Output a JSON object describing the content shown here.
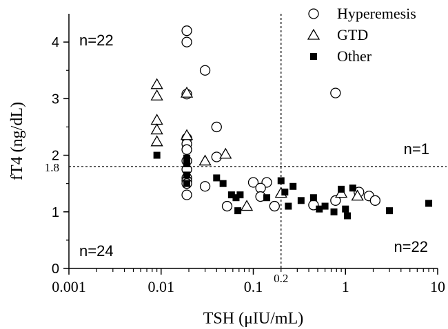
{
  "chart_data": {
    "type": "scatter",
    "xscale": "log",
    "xlim": [
      0.001,
      10
    ],
    "ylim": [
      0,
      4.5
    ],
    "xlabel": "TSH (μIU/mL)",
    "ylabel": "fT4  (ng/dL)",
    "x_ticks": [
      {
        "value": 0.001,
        "label": "0.001"
      },
      {
        "value": 0.01,
        "label": "0.01"
      },
      {
        "value": 0.1,
        "label": "0.1"
      },
      {
        "value": 1,
        "label": "1"
      },
      {
        "value": 10,
        "label": "10"
      }
    ],
    "y_ticks": [
      {
        "value": 0,
        "label": "0"
      },
      {
        "value": 1,
        "label": "1"
      },
      {
        "value": 2,
        "label": "2"
      },
      {
        "value": 3,
        "label": "3"
      },
      {
        "value": 4,
        "label": "4"
      }
    ],
    "reference_lines": [
      {
        "axis": "x",
        "value": 0.2,
        "label": "0.2"
      },
      {
        "axis": "y",
        "value": 1.8,
        "label": "1.8"
      }
    ],
    "annotations": [
      {
        "text": "n=22",
        "quadrant": "top-left"
      },
      {
        "text": "n=1",
        "quadrant": "top-right"
      },
      {
        "text": "n=24",
        "quadrant": "bottom-left"
      },
      {
        "text": "n=22",
        "quadrant": "bottom-right"
      }
    ],
    "legend_position": "top-right",
    "series": [
      {
        "name": "Hyperemesis",
        "marker": "open-circle",
        "color": "#000000",
        "points": [
          [
            0.019,
            4.2
          ],
          [
            0.019,
            4.0
          ],
          [
            0.03,
            3.5
          ],
          [
            0.019,
            3.08
          ],
          [
            0.78,
            3.1
          ],
          [
            0.04,
            2.5
          ],
          [
            0.019,
            2.3
          ],
          [
            0.019,
            2.2
          ],
          [
            0.019,
            2.1
          ],
          [
            0.04,
            1.97
          ],
          [
            0.019,
            1.9
          ],
          [
            0.019,
            1.75
          ],
          [
            0.019,
            1.6
          ],
          [
            0.019,
            1.55
          ],
          [
            0.019,
            1.5
          ],
          [
            0.03,
            1.45
          ],
          [
            0.019,
            1.3
          ],
          [
            0.052,
            1.1
          ],
          [
            0.1,
            1.52
          ],
          [
            0.14,
            1.52
          ],
          [
            0.12,
            1.42
          ],
          [
            0.12,
            1.27
          ],
          [
            0.17,
            1.1
          ],
          [
            0.45,
            1.12
          ],
          [
            0.78,
            1.2
          ],
          [
            1.4,
            1.35
          ],
          [
            1.8,
            1.28
          ],
          [
            2.1,
            1.2
          ]
        ]
      },
      {
        "name": "GTD",
        "marker": "open-triangle",
        "color": "#000000",
        "points": [
          [
            0.009,
            3.25
          ],
          [
            0.009,
            3.05
          ],
          [
            0.009,
            2.62
          ],
          [
            0.009,
            2.45
          ],
          [
            0.009,
            2.24
          ],
          [
            0.019,
            3.1
          ],
          [
            0.019,
            2.35
          ],
          [
            0.03,
            1.9
          ],
          [
            0.05,
            2.02
          ],
          [
            0.085,
            1.1
          ],
          [
            0.2,
            1.33
          ],
          [
            0.9,
            1.33
          ],
          [
            1.35,
            1.28
          ]
        ]
      },
      {
        "name": "Other",
        "marker": "filled-square",
        "color": "#000000",
        "points": [
          [
            0.009,
            2.0
          ],
          [
            0.019,
            1.95
          ],
          [
            0.019,
            1.85
          ],
          [
            0.019,
            1.65
          ],
          [
            0.019,
            1.5
          ],
          [
            0.04,
            1.6
          ],
          [
            0.047,
            1.5
          ],
          [
            0.058,
            1.3
          ],
          [
            0.065,
            1.25
          ],
          [
            0.068,
            1.02
          ],
          [
            0.072,
            1.3
          ],
          [
            0.14,
            1.25
          ],
          [
            0.2,
            1.55
          ],
          [
            0.22,
            1.35
          ],
          [
            0.24,
            1.1
          ],
          [
            0.27,
            1.45
          ],
          [
            0.33,
            1.2
          ],
          [
            0.45,
            1.25
          ],
          [
            0.52,
            1.05
          ],
          [
            0.6,
            1.1
          ],
          [
            0.75,
            1.0
          ],
          [
            0.9,
            1.4
          ],
          [
            1.0,
            1.05
          ],
          [
            1.05,
            0.93
          ],
          [
            1.2,
            1.42
          ],
          [
            3.0,
            1.02
          ],
          [
            8.0,
            1.15
          ]
        ]
      }
    ]
  }
}
